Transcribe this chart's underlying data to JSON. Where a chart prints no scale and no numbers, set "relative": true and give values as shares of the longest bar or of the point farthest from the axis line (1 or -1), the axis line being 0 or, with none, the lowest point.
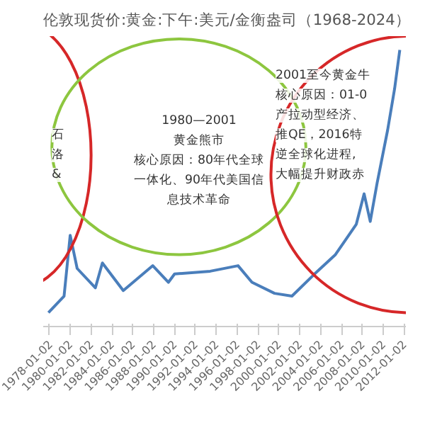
{
  "chart_data": {
    "type": "line",
    "title": "伦敦现货价:黄金:下午:美元/金衡盎司（1968-2024）",
    "relative": true,
    "x": [
      "1977-12",
      "1979-06",
      "1980-01",
      "1980-09",
      "1982-06",
      "1983-02",
      "1985-02",
      "1987-12",
      "1989-06",
      "1990-01",
      "1993-06",
      "1996-02",
      "1997-06",
      "1999-08",
      "2001-04",
      "2003-06",
      "2005-06",
      "2006-05",
      "2007-06",
      "2008-03",
      "2008-10",
      "2009-06",
      "2010-06",
      "2011-02",
      "2011-08"
    ],
    "series": [
      {
        "color": "#4a7ebb",
        "values": [
          0.05,
          0.11,
          0.33,
          0.21,
          0.14,
          0.23,
          0.13,
          0.22,
          0.16,
          0.19,
          0.2,
          0.22,
          0.16,
          0.12,
          0.11,
          0.19,
          0.26,
          0.31,
          0.37,
          0.48,
          0.38,
          0.52,
          0.71,
          0.86,
          1.0
        ]
      }
    ],
    "xlim": [
      "1977-06-01",
      "2012-03-01"
    ],
    "xticks": [
      "1978-01-02",
      "1980-01-02",
      "1982-01-02",
      "1984-01-02",
      "1986-01-02",
      "1988-01-02",
      "1990-01-02",
      "1992-01-02",
      "1994-01-02",
      "1996-01-02",
      "1998-01-02",
      "2000-01-02",
      "2002-01-02",
      "2004-01-02",
      "2006-01-02",
      "2008-01-02",
      "2010-01-02",
      "2012-01-02"
    ],
    "annotations": [
      "石",
      "洛",
      "&",
      "1980—2001",
      "黄金熊市",
      "核心原因：80年代全球",
      "一体化、90年代美国信",
      "息技术革命",
      "2001至今黄金牛",
      "核心原因：01-0",
      "产拉动型经济、",
      "推QE，2016特",
      "逆全球化进程,",
      "大幅提升财政赤"
    ],
    "marker": "none",
    "line_style": "solid"
  }
}
